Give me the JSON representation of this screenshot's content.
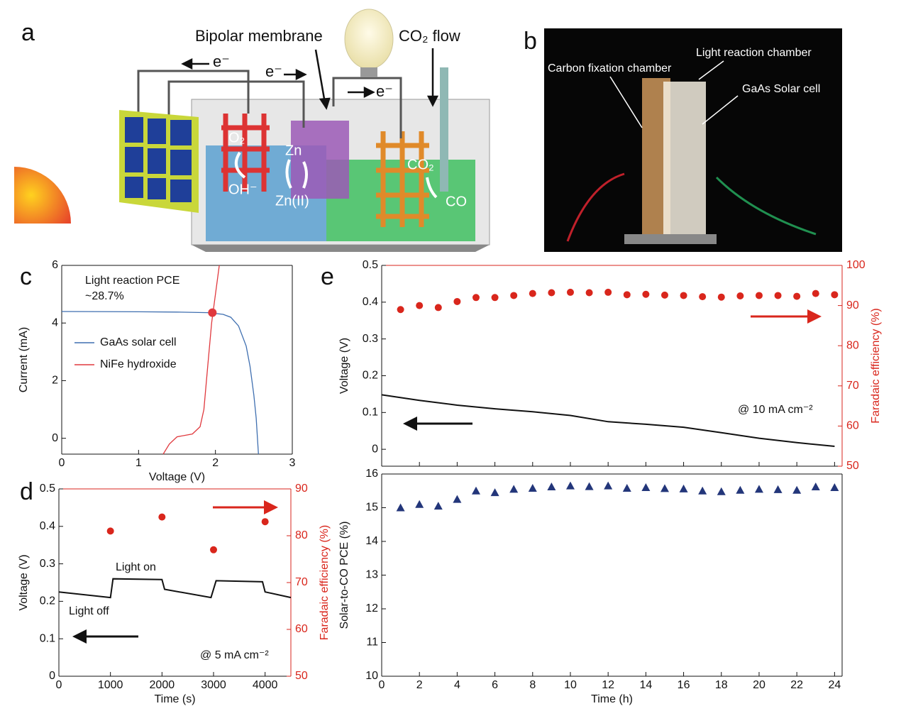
{
  "panel_labels": {
    "a": "a",
    "b": "b",
    "c": "c",
    "d": "d",
    "e": "e"
  },
  "diagram_a": {
    "bipolar_membrane": "Bipolar membrane",
    "co2_flow": "CO₂ flow",
    "electron_1": "e⁻",
    "electron_2": "e⁻",
    "electron_3": "e⁻",
    "o2": "O₂",
    "oh": "OH⁻",
    "zn": "Zn",
    "zn2": "Zn(II)",
    "co2": "CO₂",
    "co": "CO"
  },
  "photo_b": {
    "light_chamber": "Light reaction chamber",
    "carbon_chamber": "Carbon fixation chamber",
    "solar_cell": "GaAs Solar cell"
  },
  "chart_data": [
    {
      "type": "line",
      "xlabel": "Voltage (V)",
      "ylabel": "Current (mA)",
      "xlim": [
        0,
        3
      ],
      "xticks": [
        0,
        1,
        2,
        3
      ],
      "ylim": [
        -0.55,
        6
      ],
      "yticks": [
        0,
        2,
        4,
        6
      ],
      "legend": "left",
      "annotations": [
        "Light reaction PCE",
        "~28.7%"
      ],
      "series": [
        {
          "name": "GaAs solar cell",
          "color": "#3f6fb0",
          "style": "line",
          "x": [
            0,
            1,
            1.5,
            1.9,
            2.1,
            2.2,
            2.3,
            2.4,
            2.45,
            2.5,
            2.53,
            2.56
          ],
          "values": [
            4.4,
            4.39,
            4.38,
            4.36,
            4.3,
            4.2,
            3.9,
            3.2,
            2.5,
            1.5,
            0.7,
            -0.55
          ]
        },
        {
          "name": "NiFe hydroxide",
          "color": "#e0393e",
          "style": "line",
          "x": [
            1.32,
            1.4,
            1.5,
            1.6,
            1.7,
            1.8,
            1.85,
            1.9,
            1.95,
            2.0,
            2.05
          ],
          "values": [
            -0.55,
            -0.2,
            0.05,
            0.1,
            0.15,
            0.4,
            1,
            2.5,
            4,
            5,
            6
          ]
        }
      ],
      "highlight": {
        "x": 1.96,
        "value": 4.36,
        "color": "#e0393e"
      }
    },
    {
      "type": "line",
      "xlabel": "Time (s)",
      "ylabel": "Voltage (V)",
      "y2label": "Faradaic efficiency (%)",
      "xlim": [
        0,
        4500
      ],
      "xticks": [
        0,
        1000,
        2000,
        3000,
        4000
      ],
      "ylim": [
        0,
        0.5
      ],
      "yticks": [
        0,
        0.1,
        0.2,
        0.3,
        0.4,
        0.5
      ],
      "y2lim": [
        50,
        90
      ],
      "y2ticks": [
        50,
        60,
        70,
        80,
        90
      ],
      "y2color": "#d9261c",
      "annotations": [
        "Light on",
        "Light off",
        "@ 5 mA cm⁻²"
      ],
      "series": [
        {
          "color": "#111111",
          "style": "line",
          "x": [
            0,
            1000,
            1050,
            2000,
            2050,
            2950,
            3050,
            3950,
            4000,
            4500
          ],
          "values": [
            0.225,
            0.21,
            0.26,
            0.258,
            0.232,
            0.21,
            0.255,
            0.252,
            0.225,
            0.21
          ]
        },
        {
          "color": "#d9261c",
          "style": "circle",
          "axis": "y2",
          "x": [
            1000,
            2000,
            3000,
            4000
          ],
          "values": [
            81,
            84,
            77,
            83
          ]
        }
      ]
    },
    {
      "type": "line",
      "ylabel": "Voltage (V)",
      "y2label": "Faradaic efficiency (%)",
      "xlim": [
        0,
        24.4
      ],
      "xticks": [
        0,
        2,
        4,
        6,
        8,
        10,
        12,
        14,
        16,
        18,
        20,
        22,
        24
      ],
      "xtick_labels": false,
      "ylim": [
        -0.046,
        0.5
      ],
      "yticks": [
        0,
        0.1,
        0.2,
        0.3,
        0.4,
        0.5
      ],
      "y2lim": [
        50,
        100
      ],
      "y2ticks": [
        50,
        60,
        70,
        80,
        90,
        100
      ],
      "y2color": "#d9261c",
      "annotations": [
        "@ 10 mA cm⁻²"
      ],
      "series": [
        {
          "color": "#111111",
          "style": "line",
          "x": [
            0,
            2,
            4,
            6,
            8,
            10,
            12,
            14,
            16,
            18,
            20,
            22,
            24
          ],
          "values": [
            0.148,
            0.133,
            0.12,
            0.11,
            0.102,
            0.092,
            0.075,
            0.068,
            0.06,
            0.045,
            0.03,
            0.018,
            0.008
          ]
        },
        {
          "color": "#d9261c",
          "style": "circle",
          "axis": "y2",
          "x": [
            1,
            2,
            3,
            4,
            5,
            6,
            7,
            8,
            9,
            10,
            11,
            12,
            13,
            14,
            15,
            16,
            17,
            18,
            19,
            20,
            21,
            22,
            23,
            24
          ],
          "values": [
            89,
            90,
            89.5,
            91,
            92,
            92,
            92.5,
            93,
            93.2,
            93.3,
            93.2,
            93.3,
            92.7,
            92.8,
            92.6,
            92.5,
            92.2,
            92.1,
            92.4,
            92.5,
            92.5,
            92.3,
            93,
            92.7
          ]
        }
      ]
    },
    {
      "type": "scatter",
      "xlabel": "Time (h)",
      "ylabel": "Solar-to-CO PCE (%)",
      "xlim": [
        0,
        24.4
      ],
      "xticks": [
        0,
        2,
        4,
        6,
        8,
        10,
        12,
        14,
        16,
        18,
        20,
        22,
        24
      ],
      "ylim": [
        10,
        16
      ],
      "yticks": [
        10,
        11,
        12,
        13,
        14,
        15,
        16
      ],
      "series": [
        {
          "color": "#23367a",
          "style": "triangle",
          "x": [
            1,
            2,
            3,
            4,
            5,
            6,
            7,
            8,
            9,
            10,
            11,
            12,
            13,
            14,
            15,
            16,
            17,
            18,
            19,
            20,
            21,
            22,
            23,
            24
          ],
          "values": [
            15,
            15.1,
            15.05,
            15.25,
            15.5,
            15.45,
            15.55,
            15.58,
            15.62,
            15.65,
            15.63,
            15.65,
            15.58,
            15.6,
            15.57,
            15.56,
            15.5,
            15.48,
            15.52,
            15.55,
            15.54,
            15.52,
            15.62,
            15.6
          ]
        }
      ]
    }
  ]
}
